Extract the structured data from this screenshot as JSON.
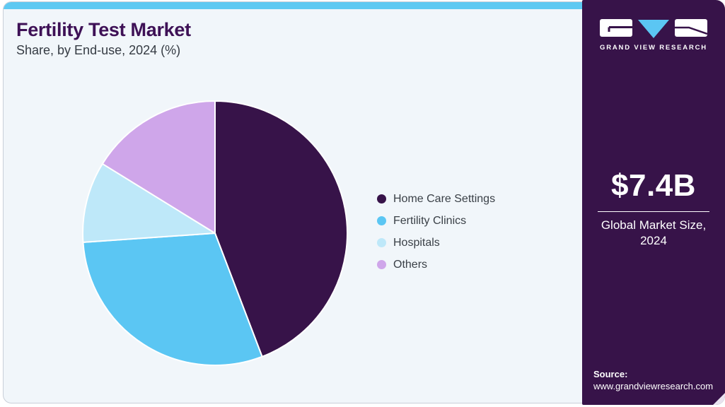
{
  "header": {
    "title": "Fertility Test Market",
    "subtitle": "Share, by End-use, 2024 (%)"
  },
  "chart_data": {
    "type": "pie",
    "title": "Fertility Test Market Share, by End-use, 2024 (%)",
    "categories": [
      "Home Care Settings",
      "Fertility Clinics",
      "Hospitals",
      "Others"
    ],
    "values": [
      44.2,
      29.7,
      9.9,
      16.2
    ],
    "colors": [
      "#371349",
      "#5bc6f3",
      "#bee8f9",
      "#cfa6ea"
    ],
    "start_angle_deg": 0,
    "direction": "clockwise",
    "legend_position": "right",
    "data_labels": false,
    "slice_gap_color": "#ffffff"
  },
  "sidebar": {
    "logo_wordmark": "GRAND VIEW RESEARCH",
    "market_size_value": "$7.4B",
    "market_size_caption": "Global Market Size, 2024",
    "source_label": "Source:",
    "source_url": "www.grandviewresearch.com"
  },
  "colors": {
    "accent_bar": "#5ec9f2",
    "sidebar_bg": "#371349",
    "card_bg": "#f1f6fa",
    "title_text": "#3e1156"
  }
}
